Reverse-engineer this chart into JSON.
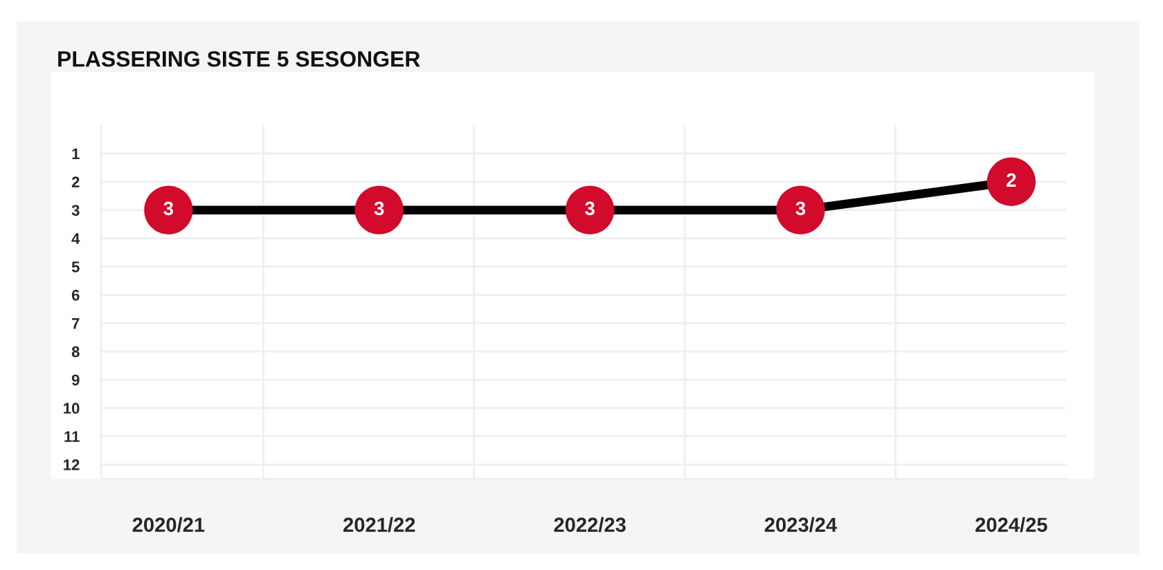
{
  "chart_data": {
    "type": "line",
    "title": "PLASSERING SISTE 5 SESONGER",
    "categories": [
      "2020/21",
      "2021/22",
      "2022/23",
      "2023/24",
      "2024/25"
    ],
    "series": [
      {
        "color": "#000000",
        "colors": [
          "#d20a2b",
          "#d20a2b",
          "#d20a2b",
          "#d20a2b",
          "#d20a2b"
        ],
        "values": [
          3,
          3,
          3,
          3,
          2
        ]
      }
    ],
    "ylim": [
      12.5,
      0
    ],
    "yticks": [
      1,
      2,
      3,
      4,
      5,
      6,
      7,
      8,
      9,
      10,
      11,
      12
    ],
    "grid": true,
    "marker": "circle",
    "line_style": "solid",
    "data_labels": true
  }
}
